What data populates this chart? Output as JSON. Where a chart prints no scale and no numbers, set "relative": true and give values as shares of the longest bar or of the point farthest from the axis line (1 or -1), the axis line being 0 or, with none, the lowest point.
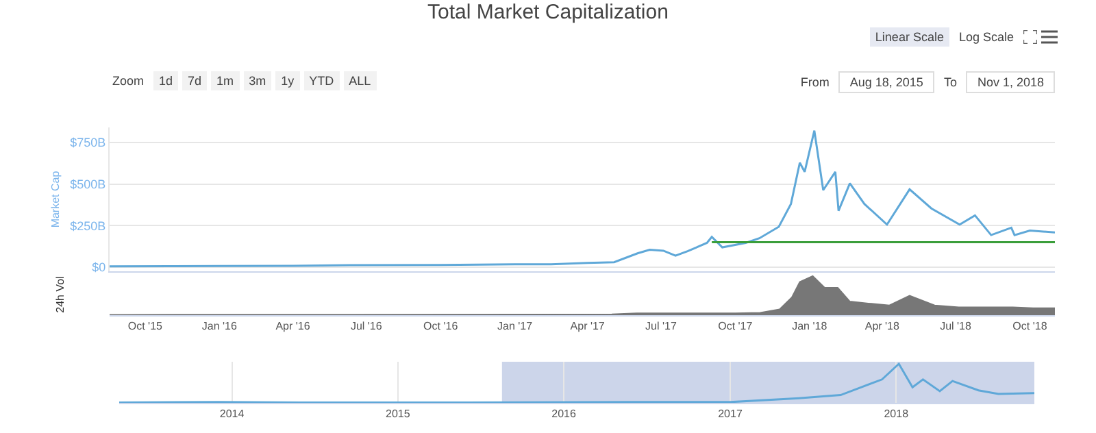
{
  "chart_data": [
    {
      "type": "line",
      "title": "Total Market Capitalization",
      "ylabel": "Market Cap",
      "annotations": [
        "Zoom",
        "1d",
        "7d",
        "1m",
        "3m",
        "1y",
        "YTD",
        "ALL",
        "From",
        "Aug 18, 2015",
        "To",
        "Nov 1, 2018",
        "Linear Scale",
        "Log Scale"
      ],
      "series": [
        {
          "color": "#5fa8d8",
          "x": [
            "2015-08-18",
            "2015-11-01",
            "2016-01-01",
            "2016-04-01",
            "2016-06-15",
            "2016-10-01",
            "2017-01-01",
            "2017-02-15",
            "2017-04-01",
            "2017-05-04",
            "2017-06-02",
            "2017-06-17",
            "2017-07-04",
            "2017-07-19",
            "2017-08-03",
            "2017-08-27",
            "2017-09-02",
            "2017-09-15",
            "2017-10-14",
            "2017-10-31",
            "2017-11-24",
            "2017-12-09",
            "2017-12-20",
            "2017-12-26",
            "2018-01-07",
            "2018-01-18",
            "2018-02-02",
            "2018-02-06",
            "2018-02-20",
            "2018-03-10",
            "2018-04-07",
            "2018-05-05",
            "2018-06-01",
            "2018-07-06",
            "2018-07-25",
            "2018-08-14",
            "2018-09-08",
            "2018-09-12",
            "2018-10-01",
            "2018-11-01"
          ],
          "values": [
            5,
            6,
            7,
            8,
            12,
            13,
            17,
            17,
            25,
            30,
            83,
            105,
            99,
            69,
            96,
            146,
            182,
            119,
            146,
            174,
            243,
            380,
            628,
            573,
            821,
            463,
            573,
            339,
            504,
            380,
            256,
            468,
            353,
            256,
            311,
            193,
            237,
            193,
            220,
            209
          ]
        },
        {
          "color": "#3a9e3a",
          "x": [
            "2017-09-02",
            "2018-11-01"
          ],
          "values": [
            150,
            150
          ]
        }
      ],
      "xlim": [
        "2015-08-18",
        "2018-11-01"
      ],
      "ylim": [
        -25,
        840
      ],
      "yticks": [
        {
          "value": 0,
          "label": "$0"
        },
        {
          "value": 250,
          "label": "$250B"
        },
        {
          "value": 500,
          "label": "$500B"
        },
        {
          "value": 750,
          "label": "$750B"
        }
      ],
      "grid": "y",
      "tick_labels": "y",
      "line_style": "solid",
      "marker": "none"
    },
    {
      "type": "area",
      "ylabel": "24h Vol",
      "relative": true,
      "series": [
        {
          "color": "#777777",
          "x": [
            "2015-08-18",
            "2017-05-01",
            "2017-06-01",
            "2017-08-15",
            "2017-10-01",
            "2017-11-01",
            "2017-11-25",
            "2017-12-10",
            "2017-12-20",
            "2018-01-05",
            "2018-01-20",
            "2018-02-05",
            "2018-02-20",
            "2018-03-15",
            "2018-04-10",
            "2018-05-05",
            "2018-06-05",
            "2018-07-05",
            "2018-08-10",
            "2018-09-10",
            "2018-10-05",
            "2018-11-01"
          ],
          "values": [
            0.01,
            0.02,
            0.05,
            0.05,
            0.05,
            0.06,
            0.15,
            0.45,
            0.85,
            1,
            0.7,
            0.7,
            0.35,
            0.3,
            0.25,
            0.5,
            0.25,
            0.2,
            0.2,
            0.2,
            0.18,
            0.18
          ]
        }
      ],
      "xlim": [
        "2015-08-18",
        "2018-11-01"
      ],
      "xticks": [
        {
          "value": "2015-10-01",
          "label": "Oct '15"
        },
        {
          "value": "2016-01-01",
          "label": "Jan '16"
        },
        {
          "value": "2016-04-01",
          "label": "Apr '16"
        },
        {
          "value": "2016-07-01",
          "label": "Jul '16"
        },
        {
          "value": "2016-10-01",
          "label": "Oct '16"
        },
        {
          "value": "2017-01-01",
          "label": "Jan '17"
        },
        {
          "value": "2017-04-01",
          "label": "Apr '17"
        },
        {
          "value": "2017-07-01",
          "label": "Jul '17"
        },
        {
          "value": "2017-10-01",
          "label": "Oct '17"
        },
        {
          "value": "2018-01-01",
          "label": "Jan '18"
        },
        {
          "value": "2018-04-01",
          "label": "Apr '18"
        },
        {
          "value": "2018-07-01",
          "label": "Jul '18"
        },
        {
          "value": "2018-10-01",
          "label": "Oct '18"
        }
      ],
      "tick_labels": "x",
      "grid": false
    },
    {
      "type": "line",
      "relative": true,
      "series": [
        {
          "color": "#5fa8d8",
          "x": [
            "2013-04-28",
            "2013-12-01",
            "2014-06-01",
            "2015-06-01",
            "2016-06-01",
            "2017-01-01",
            "2017-06-01",
            "2017-09-01",
            "2017-12-01",
            "2018-01-07",
            "2018-02-06",
            "2018-03-01",
            "2018-04-07",
            "2018-05-05",
            "2018-07-01",
            "2018-08-14",
            "2018-11-01"
          ],
          "values": [
            0.01,
            0.02,
            0.01,
            0.01,
            0.02,
            0.02,
            0.12,
            0.2,
            0.6,
            1,
            0.4,
            0.6,
            0.3,
            0.56,
            0.32,
            0.23,
            0.25
          ]
        }
      ],
      "xlim": [
        "2013-04-28",
        "2018-11-01"
      ],
      "xticks": [
        {
          "value": "2014-01-01",
          "label": "2014"
        },
        {
          "value": "2015-01-01",
          "label": "2015"
        },
        {
          "value": "2016-01-01",
          "label": "2016"
        },
        {
          "value": "2017-01-01",
          "label": "2017"
        },
        {
          "value": "2018-01-01",
          "label": "2018"
        }
      ],
      "bands": [
        {
          "axis": "x",
          "from": "2015-08-18",
          "to": "2018-11-01",
          "color": "#ccd5ea"
        }
      ],
      "grid": "x",
      "tick_labels": "x",
      "line_style": "solid",
      "marker": "none"
    }
  ]
}
